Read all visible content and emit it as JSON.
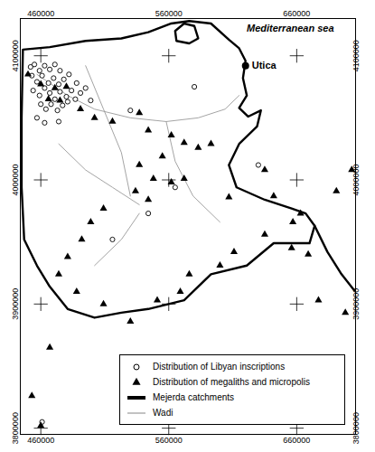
{
  "chart_data": {
    "type": "map",
    "xlim": [
      444000,
      706000
    ],
    "ylim": [
      3795000,
      4130000
    ],
    "xticks": [
      460000,
      560000,
      660000
    ],
    "yticks": [
      3800000,
      3900000,
      4000000,
      4100000
    ],
    "legend": "bottom-right",
    "tick_labels": true,
    "annotations": [
      {
        "text": "Mediterranean sea",
        "x": 655000,
        "y": 4122000
      },
      {
        "text": "Utica",
        "x": 620000,
        "y": 4092000,
        "marker": "dot"
      }
    ],
    "series": [
      {
        "name": "Distribution of Libyan inscriptions",
        "type": "scatter",
        "marker": "open_circle",
        "color": "#000000",
        "x": [
          452000,
          455000,
          459000,
          463000,
          467000,
          471000,
          475000,
          453000,
          457000,
          461000,
          466000,
          470000,
          474000,
          478000,
          482000,
          454000,
          459000,
          463000,
          467000,
          471000,
          475000,
          480000,
          484000,
          488000,
          460000,
          464000,
          468000,
          473000,
          477000,
          481000,
          487000,
          491000,
          495000,
          499000,
          457000,
          463000,
          474000,
          530000,
          580000,
          565000,
          630000,
          516000,
          461000,
          544000
        ],
        "y": [
          4091000,
          4093000,
          4088000,
          4092000,
          4089000,
          4093000,
          4088000,
          4084000,
          4079000,
          4084000,
          4078000,
          4082000,
          4077000,
          4081000,
          4085000,
          4072000,
          4068000,
          4074000,
          4070000,
          4065000,
          4071000,
          4067000,
          4072000,
          4078000,
          4061000,
          4057000,
          4061000,
          4056000,
          4060000,
          4063000,
          4065000,
          4070000,
          4074000,
          4064000,
          4050000,
          4046000,
          4047000,
          4056000,
          4075000,
          3994000,
          4012000,
          3952000,
          3805000,
          3973000
        ]
      },
      {
        "name": "Distribution of megaliths and micropolis",
        "type": "scatter",
        "marker": "triangle",
        "color": "#000000",
        "x": [
          450000,
          460000,
          471000,
          480000,
          466000,
          475000,
          491000,
          502000,
          516000,
          537000,
          544000,
          562000,
          572000,
          583000,
          593000,
          555000,
          537000,
          548000,
          562000,
          572000,
          534000,
          544000,
          607000,
          642000,
          635000,
          663000,
          657000,
          509000,
          499000,
          492000,
          481000,
          474000,
          488000,
          509000,
          530000,
          551000,
          569000,
          576000,
          600000,
          611000,
          635000,
          656000,
          669000,
          677000,
          698000,
          460000,
          453000,
          467000,
          691000,
          703000
        ],
        "y": [
          4085000,
          4077000,
          4074000,
          4075000,
          4065000,
          4064000,
          4057000,
          4050000,
          4047000,
          4054000,
          4040000,
          4036000,
          4030000,
          4026000,
          4029000,
          4019000,
          4012000,
          4001000,
          3998000,
          4001000,
          3991000,
          3984000,
          3986000,
          3987000,
          4008000,
          3973000,
          3966000,
          3977000,
          3966000,
          3952000,
          3938000,
          3924000,
          3910000,
          3900000,
          3886000,
          3903000,
          3910000,
          3924000,
          3931000,
          3942000,
          3956000,
          3945000,
          3940000,
          3903000,
          3893000,
          3802000,
          3826000,
          3865000,
          3991000,
          4008000
        ]
      },
      {
        "name": "Mejerda catchments",
        "type": "line",
        "line_style": "thick",
        "color": "#000000",
        "paths": [
          {
            "x": [
              446000,
              467000,
              495000,
              523000,
              544000,
              562000,
              576000,
              593000,
              607000,
              615000,
              620000,
              618000,
              621000,
              615000,
              622000,
              632000,
              629000,
              615000,
              607000,
              613000,
              635000,
              656000,
              667000,
              674000,
              670000,
              642000,
              621000,
              593000,
              572000,
              544000,
              523000,
              502000,
              481000,
              467000,
              457000,
              447000,
              445000,
              445000,
              446000
            ],
            "y": [
              4105000,
              4107000,
              4112000,
              4114000,
              4119000,
              4126000,
              4128000,
              4126000,
              4113000,
              4106000,
              4096000,
              4082000,
              4068000,
              4058000,
              4051000,
              4056000,
              4043000,
              4029000,
              4012000,
              3994000,
              3984000,
              3977000,
              3973000,
              3963000,
              3949000,
              3949000,
              3931000,
              3924000,
              3903000,
              3896000,
              3893000,
              3889000,
              3896000,
              3914000,
              3931000,
              3952000,
              3994000,
              4050000,
              4105000
            ]
          },
          {
            "x": [
              674000,
              684000,
              695000,
              705000
            ],
            "y": [
              3963000,
              3942000,
              3924000,
              3911000
            ]
          },
          {
            "x": [
              565000,
              572000,
              580000,
              583000,
              576000,
              566000,
              565000
            ],
            "y": [
              4120000,
              4126000,
              4124000,
              4114000,
              4110000,
              4112000,
              4120000
            ]
          }
        ]
      },
      {
        "name": "Wadi",
        "type": "line",
        "line_style": "solid",
        "color": "#9a9a9a",
        "paths": [
          {
            "x": [
              457000,
              481000,
              502000,
              530000,
              558000,
              583000,
              604000,
              615000
            ],
            "y": [
              4085000,
              4068000,
              4057000,
              4050000,
              4047000,
              4050000,
              4057000,
              4068000
            ]
          },
          {
            "x": [
              495000,
              509000,
              523000,
              530000
            ],
            "y": [
              4092000,
              4057000,
              4022000,
              3987000
            ]
          },
          {
            "x": [
              558000,
              565000,
              579000,
              600000
            ],
            "y": [
              4047000,
              4015000,
              3987000,
              3966000
            ]
          },
          {
            "x": [
              474000,
              495000,
              516000,
              537000
            ],
            "y": [
              4029000,
              4008000,
              3994000,
              3980000
            ]
          },
          {
            "x": [
              502000,
              523000,
              537000
            ],
            "y": [
              3931000,
              3952000,
              3973000
            ]
          }
        ]
      }
    ]
  }
}
